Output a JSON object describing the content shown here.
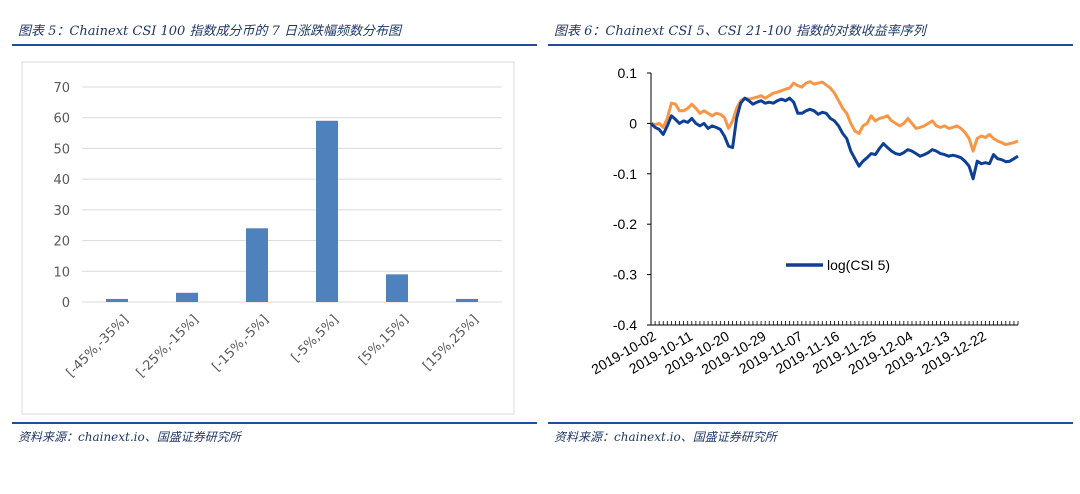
{
  "left": {
    "title": "图表 5：Chainext CSI 100 指数成分币的 7 日涨跌幅频数分布图",
    "source": "资料来源：chainext.io、国盛证券研究所"
  },
  "right": {
    "title": "图表 6：Chainext CSI 5、CSI 21-100 指数的对数收益率序列",
    "source": "资料来源：chainext.io、国盛证券研究所"
  },
  "chart_data": [
    {
      "type": "bar",
      "categories": [
        "[-45%,-35%]",
        "[-25%,-15%]",
        "[-15%,-5%]",
        "[-5%,5%]",
        "[5%,15%]",
        "[15%,25%]"
      ],
      "values": [
        1,
        3,
        24,
        59,
        9,
        1
      ],
      "ylim": [
        0,
        70
      ],
      "yticks": [
        "0",
        "10",
        "20",
        "30",
        "40",
        "50",
        "60",
        "70"
      ],
      "grid": true,
      "colors": {
        "bar": "#4f81bd",
        "grid": "#d9d9d9"
      }
    },
    {
      "type": "line",
      "x_start": "2019-10-02",
      "x_end": "2019-12-30",
      "xticks": [
        "2019-10-02",
        "2019-10-11",
        "2019-10-20",
        "2019-10-29",
        "2019-11-07",
        "2019-11-16",
        "2019-11-25",
        "2019-12-04",
        "2019-12-13",
        "2019-12-22"
      ],
      "ylim": [
        -0.4,
        0.1
      ],
      "yticks": [
        "0.1",
        "0",
        "-0.1",
        "-0.2",
        "-0.3",
        "-0.4"
      ],
      "legend": {
        "label": "log(CSI 5)",
        "position": "center"
      },
      "series": [
        {
          "name": "log(CSI 5)",
          "color": "#0e3f97",
          "values": [
            0.0,
            -0.008,
            -0.012,
            -0.022,
            -0.005,
            0.015,
            0.008,
            0.0,
            0.005,
            0.002,
            0.01,
            0.0,
            -0.005,
            0.0,
            -0.01,
            -0.005,
            -0.008,
            -0.012,
            -0.025,
            -0.045,
            -0.048,
            0.01,
            0.04,
            0.05,
            0.045,
            0.038,
            0.042,
            0.045,
            0.04,
            0.042,
            0.04,
            0.045,
            0.048,
            0.045,
            0.05,
            0.042,
            0.02,
            0.02,
            0.025,
            0.028,
            0.025,
            0.018,
            0.022,
            0.02,
            0.01,
            0.005,
            -0.005,
            -0.02,
            -0.03,
            -0.055,
            -0.07,
            -0.085,
            -0.075,
            -0.068,
            -0.06,
            -0.062,
            -0.05,
            -0.04,
            -0.048,
            -0.055,
            -0.06,
            -0.062,
            -0.058,
            -0.052,
            -0.055,
            -0.06,
            -0.065,
            -0.062,
            -0.058,
            -0.052,
            -0.055,
            -0.06,
            -0.062,
            -0.065,
            -0.063,
            -0.065,
            -0.068,
            -0.075,
            -0.085,
            -0.11,
            -0.075,
            -0.08,
            -0.078,
            -0.08,
            -0.062,
            -0.07,
            -0.072,
            -0.076,
            -0.075,
            -0.07,
            -0.065
          ]
        },
        {
          "name": "",
          "color": "#f79646",
          "values": [
            0.0,
            -0.002,
            0.0,
            -0.008,
            0.01,
            0.04,
            0.038,
            0.025,
            0.025,
            0.03,
            0.038,
            0.03,
            0.02,
            0.025,
            0.02,
            0.015,
            0.02,
            0.018,
            0.012,
            -0.01,
            0.005,
            0.03,
            0.045,
            0.05,
            0.048,
            0.05,
            0.052,
            0.055,
            0.05,
            0.055,
            0.06,
            0.062,
            0.065,
            0.068,
            0.07,
            0.08,
            0.075,
            0.072,
            0.08,
            0.083,
            0.078,
            0.08,
            0.082,
            0.076,
            0.07,
            0.06,
            0.045,
            0.03,
            0.02,
            0.0,
            -0.015,
            -0.02,
            -0.005,
            0.0,
            0.015,
            0.005,
            0.01,
            0.012,
            0.015,
            0.005,
            0.0,
            -0.005,
            0.0,
            0.01,
            0.0,
            -0.01,
            -0.008,
            -0.005,
            0.0,
            0.005,
            -0.005,
            -0.008,
            -0.005,
            -0.01,
            -0.008,
            -0.005,
            -0.01,
            -0.018,
            -0.03,
            -0.055,
            -0.03,
            -0.025,
            -0.028,
            -0.022,
            -0.03,
            -0.035,
            -0.038,
            -0.042,
            -0.04,
            -0.038,
            -0.035
          ]
        }
      ]
    }
  ]
}
